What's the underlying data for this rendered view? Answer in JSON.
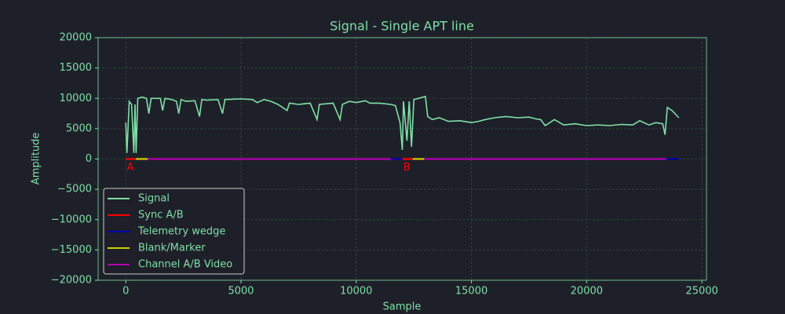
{
  "chart_data": {
    "type": "line",
    "title": "Signal - Single APT line",
    "xlabel": "Sample",
    "ylabel": "Amplitude",
    "xlim": [
      -1200,
      25200
    ],
    "ylim": [
      -20000,
      20000
    ],
    "xticks": [
      0,
      5000,
      10000,
      15000,
      20000,
      25000
    ],
    "yticks": [
      {
        "value": -20000,
        "label": "−20000"
      },
      {
        "value": -15000,
        "label": "−15000"
      },
      {
        "value": -10000,
        "label": "−10000"
      },
      {
        "value": -5000,
        "label": "−5000"
      },
      0,
      5000,
      10000,
      15000,
      20000
    ],
    "grid": true,
    "legend": "lower left",
    "series": [
      {
        "name": "Signal",
        "color": "#7ee0a6",
        "x": [
          0,
          50,
          150,
          250,
          350,
          400,
          450,
          520,
          700,
          900,
          1000,
          1100,
          1500,
          1600,
          1700,
          2000,
          2200,
          2300,
          2400,
          2600,
          3000,
          3200,
          3300,
          3500,
          4000,
          4200,
          4300,
          5000,
          5500,
          5700,
          6000,
          6300,
          6600,
          7000,
          7100,
          7500,
          8000,
          8300,
          8400,
          9000,
          9300,
          9400,
          9700,
          10000,
          10400,
          10600,
          11000,
          11500,
          11700,
          11900,
          12000,
          12050,
          12200,
          12300,
          12400,
          12500,
          12700,
          13000,
          13100,
          13300,
          13600,
          14000,
          14500,
          15000,
          15300,
          15600,
          16000,
          16500,
          17000,
          17500,
          17800,
          18000,
          18200,
          18600,
          19000,
          19500,
          20000,
          20500,
          21000,
          21500,
          22000,
          22300,
          22700,
          23000,
          23300,
          23400,
          23500,
          23700,
          24000
        ],
        "values": [
          6000,
          1000,
          9500,
          9000,
          1000,
          9000,
          1000,
          10000,
          10200,
          10000,
          7500,
          10000,
          10000,
          8000,
          10000,
          9800,
          9500,
          7500,
          9800,
          9500,
          9600,
          7000,
          9800,
          9700,
          9800,
          7500,
          9800,
          9900,
          9800,
          9300,
          9800,
          9500,
          9000,
          8000,
          9200,
          9000,
          9200,
          6500,
          9000,
          9200,
          6500,
          9000,
          9500,
          9300,
          9600,
          9200,
          9200,
          9000,
          8800,
          6000,
          1500,
          9500,
          3000,
          9500,
          2000,
          9800,
          10000,
          10300,
          7000,
          6500,
          6800,
          6200,
          6300,
          6000,
          6200,
          6500,
          6800,
          7000,
          6800,
          6900,
          6600,
          6500,
          5500,
          6500,
          5600,
          5800,
          5500,
          5600,
          5500,
          5700,
          5600,
          6300,
          5600,
          6000,
          5800,
          4000,
          8500,
          8000,
          6800
        ]
      },
      {
        "name": "Sync A/B",
        "color": "#ff0000",
        "x": [
          0,
          440,
          null,
          12000,
          12450
        ],
        "values": [
          0,
          0,
          null,
          0,
          0
        ]
      },
      {
        "name": "Telemetry wedge",
        "color": "#0000b0",
        "x": [
          11500,
          12000,
          null,
          23450,
          24000
        ],
        "values": [
          0,
          0,
          null,
          0,
          0
        ]
      },
      {
        "name": "Blank/Marker",
        "color": "#cccc00",
        "x": [
          440,
          960,
          null,
          12450,
          12950
        ],
        "values": [
          0,
          0,
          null,
          0,
          0
        ]
      },
      {
        "name": "Channel A/B Video",
        "color": "#b000b0",
        "x": [
          960,
          11500,
          null,
          12950,
          23450
        ],
        "values": [
          0,
          0,
          null,
          0,
          0
        ]
      }
    ],
    "annotations": [
      {
        "text": "A",
        "x": 200,
        "y": -1400,
        "color": "#ff0000"
      },
      {
        "text": "B",
        "x": 12200,
        "y": -1400,
        "color": "#ff0000"
      }
    ]
  }
}
